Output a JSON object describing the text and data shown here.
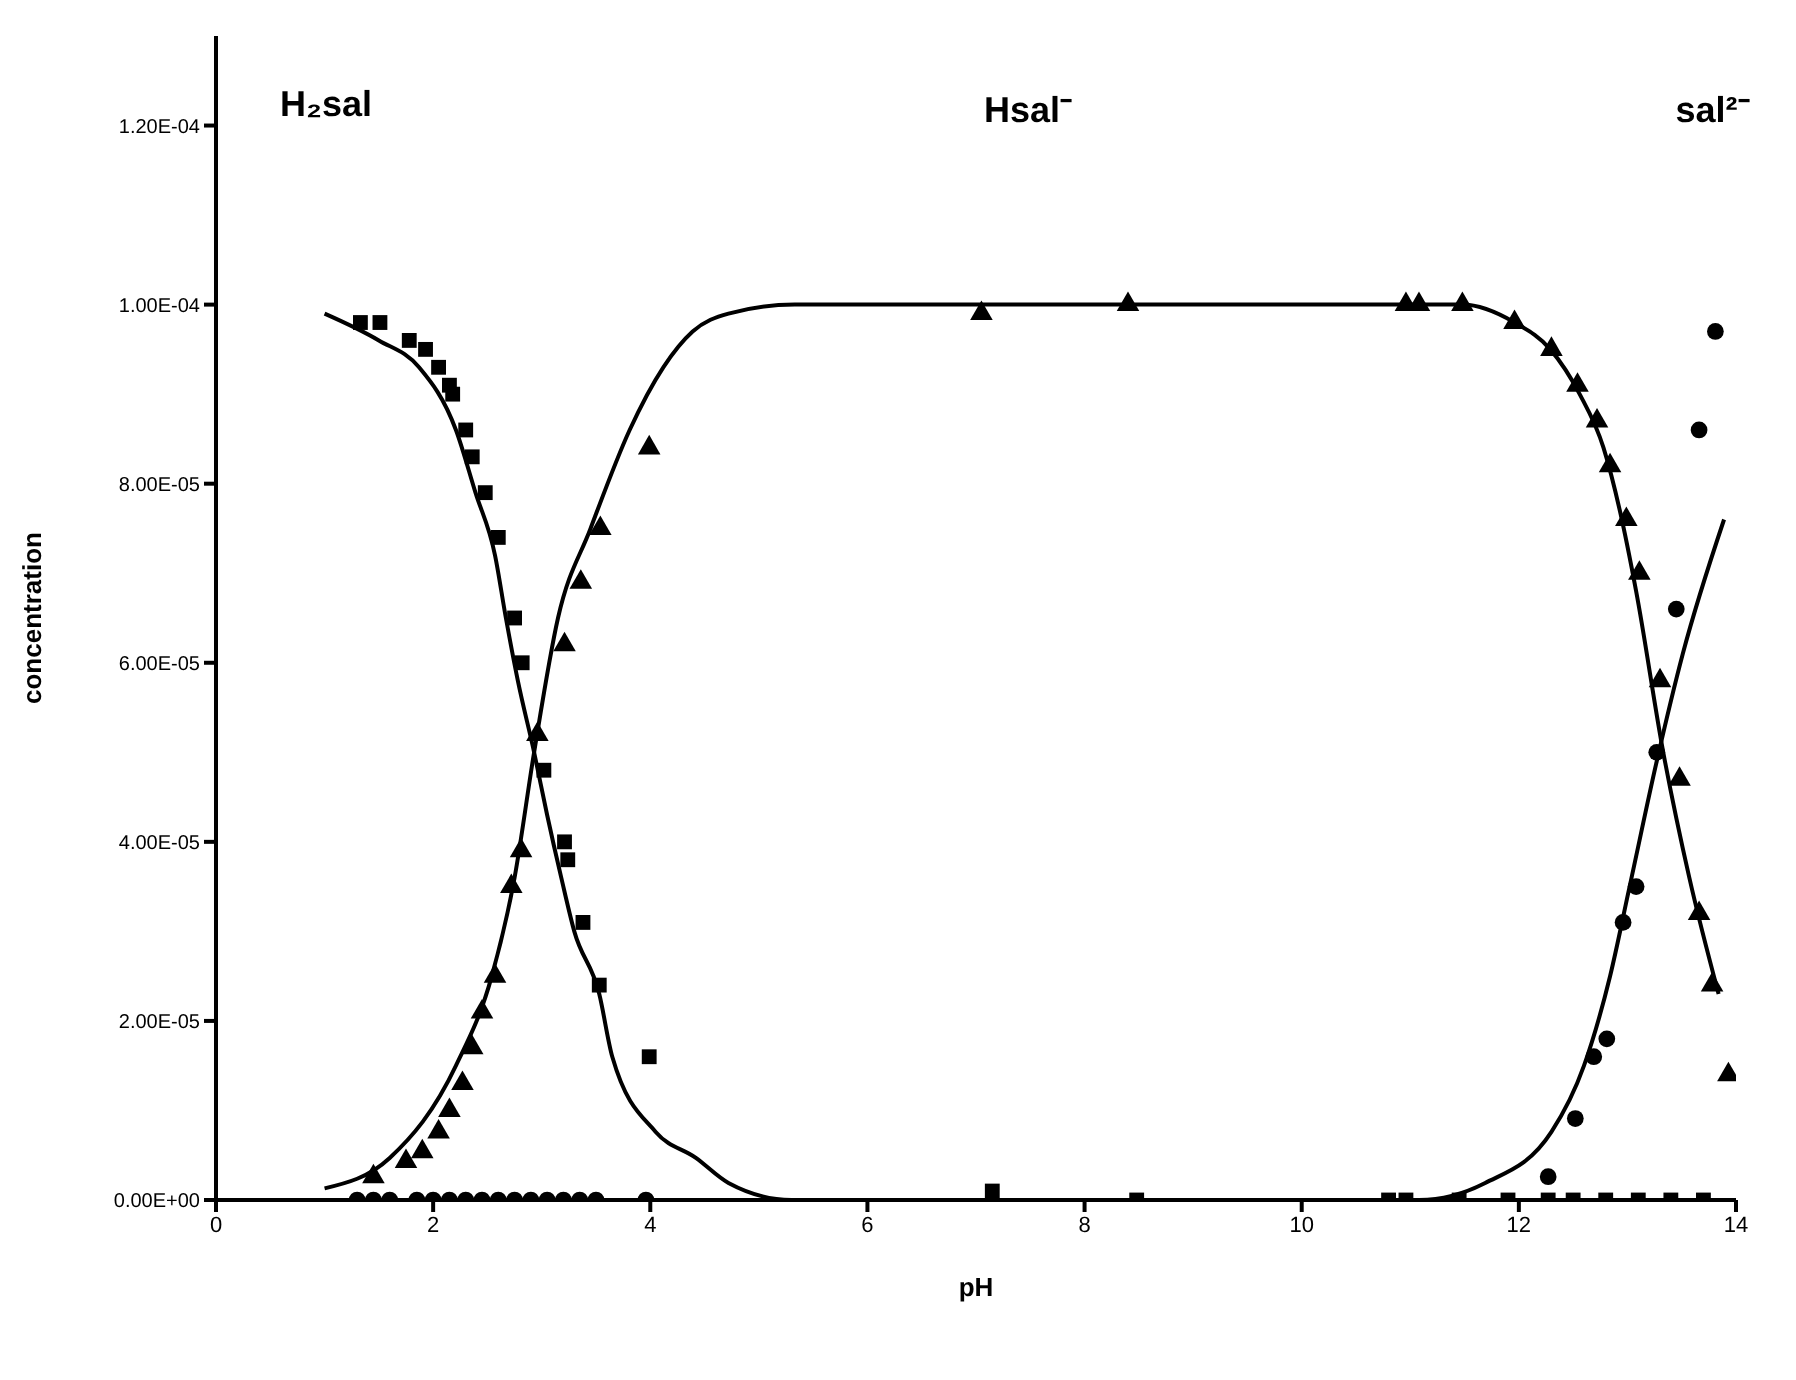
{
  "chart_data": {
    "type": "scatter",
    "xlabel": "pH",
    "ylabel": "concentration",
    "annotations": [
      "H₂sal",
      "Hsal⁻",
      "sal²⁻"
    ],
    "xlim": [
      0,
      14
    ],
    "xticks": [
      0,
      2,
      4,
      6,
      8,
      10,
      12,
      14
    ],
    "ylim": [
      0,
      0.00013
    ],
    "yticks": [
      {
        "value": 0,
        "label": "0.00E+00"
      },
      {
        "value": 2e-05,
        "label": "2.00E-05"
      },
      {
        "value": 4e-05,
        "label": "4.00E-05"
      },
      {
        "value": 6e-05,
        "label": "6.00E-05"
      },
      {
        "value": 8e-05,
        "label": "8.00E-05"
      },
      {
        "value": 0.0001,
        "label": "1.00E-04"
      },
      {
        "value": 0.00012,
        "label": "1.20E-04"
      }
    ],
    "series": [
      {
        "marker": "square",
        "color": "#000000",
        "x": [
          1.33,
          1.51,
          1.78,
          1.93,
          2.05,
          2.15,
          2.18,
          2.3,
          2.36,
          2.48,
          2.6,
          2.75,
          2.82,
          3.02,
          3.21,
          3.24,
          3.38,
          3.53,
          3.99,
          7.15,
          8.48,
          10.8,
          10.96,
          11.45,
          11.9,
          12.27,
          12.5,
          12.8,
          13.1,
          13.4,
          13.7
        ],
        "values": [
          9.8e-05,
          9.8e-05,
          9.6e-05,
          9.5e-05,
          9.3e-05,
          9.1e-05,
          9e-05,
          8.6e-05,
          8.3e-05,
          7.9e-05,
          7.4e-05,
          6.5e-05,
          6e-05,
          4.8e-05,
          4e-05,
          3.8e-05,
          3.1e-05,
          2.4e-05,
          1.6e-05,
          1e-06,
          0,
          0,
          0,
          0,
          0,
          0,
          0,
          0,
          0,
          0,
          0
        ]
      },
      {
        "marker": "triangle",
        "color": "#000000",
        "x": [
          1.45,
          1.75,
          1.9,
          2.05,
          2.15,
          2.27,
          2.36,
          2.45,
          2.57,
          2.72,
          2.81,
          2.96,
          3.21,
          3.36,
          3.54,
          3.99,
          7.05,
          8.4,
          10.96,
          11.08,
          11.48,
          11.96,
          12.3,
          12.54,
          12.72,
          12.84,
          12.99,
          13.11,
          13.3,
          13.48,
          13.66,
          13.78,
          13.93
        ],
        "values": [
          2.6e-06,
          4.3e-06,
          5.4e-06,
          7.6e-06,
          1e-05,
          1.3e-05,
          1.7e-05,
          2.1e-05,
          2.5e-05,
          3.5e-05,
          3.9e-05,
          5.2e-05,
          6.2e-05,
          6.9e-05,
          7.5e-05,
          8.4e-05,
          9.9e-05,
          0.0001,
          0.0001,
          0.0001,
          0.0001,
          9.8e-05,
          9.5e-05,
          9.1e-05,
          8.7e-05,
          8.2e-05,
          7.6e-05,
          7e-05,
          5.8e-05,
          4.7e-05,
          3.2e-05,
          2.4e-05,
          1.4e-05
        ]
      },
      {
        "marker": "circle",
        "color": "#000000",
        "x": [
          1.3,
          1.45,
          1.6,
          1.85,
          2.0,
          2.15,
          2.3,
          2.45,
          2.6,
          2.75,
          2.9,
          3.05,
          3.2,
          3.35,
          3.5,
          3.96,
          12.27,
          12.52,
          12.69,
          12.81,
          12.96,
          13.08,
          13.27,
          13.45,
          13.66,
          13.81
        ],
        "values": [
          0,
          0,
          0,
          0,
          0,
          0,
          0,
          0,
          0,
          0,
          0,
          0,
          0,
          0,
          0,
          0,
          2.6e-06,
          9.1e-06,
          1.6e-05,
          1.8e-05,
          3.1e-05,
          3.5e-05,
          5e-05,
          6.6e-05,
          8.6e-05,
          9.7e-05
        ]
      },
      {
        "type": "line",
        "marker": "none",
        "color": "#000000",
        "x": [
          1.0,
          1.5,
          1.87,
          2.21,
          2.39,
          2.57,
          2.67,
          2.78,
          2.93,
          3.05,
          3.18,
          3.3,
          3.53,
          3.65,
          4.05,
          4.42,
          4.72,
          5.3,
          6,
          10
        ],
        "values": [
          9.9e-05,
          9.6e-05,
          9.3e-05,
          8.6e-05,
          7.9e-05,
          7.2e-05,
          6.5e-05,
          5.8e-05,
          5e-05,
          4.3e-05,
          3.6e-05,
          3e-05,
          2.3e-05,
          1.6e-05,
          7.6e-06,
          4.7e-06,
          1.9e-06,
          0,
          0,
          0
        ]
      },
      {
        "type": "line",
        "marker": "none",
        "color": "#000000",
        "x": [
          1.0,
          1.6,
          2.21,
          2.54,
          2.75,
          2.93,
          3.15,
          3.45,
          3.81,
          4.12,
          4.39,
          4.72,
          5.33,
          8,
          11.48,
          11.96,
          12.29,
          12.56,
          12.78,
          12.93,
          13.08,
          13.33,
          13.57,
          13.84
        ],
        "values": [
          1.3e-06,
          4.7e-06,
          1.5e-05,
          2.5e-05,
          3.6e-05,
          5e-05,
          6.5e-05,
          7.5e-05,
          8.6e-05,
          9.3e-05,
          9.7e-05,
          9.9e-05,
          0.0001,
          0.0001,
          0.0001,
          9.8e-05,
          9.5e-05,
          9e-05,
          8.4e-05,
          7.7e-05,
          6.8e-05,
          5e-05,
          3.6e-05,
          2.3e-05
        ]
      },
      {
        "type": "line",
        "marker": "none",
        "color": "#000000",
        "x": [
          10.0,
          11.08,
          11.69,
          12.3,
          12.6,
          12.84,
          13.02,
          13.27,
          13.51,
          13.89
        ],
        "values": [
          0,
          0,
          1.9e-06,
          7.6e-06,
          1.5e-05,
          2.5e-05,
          3.5e-05,
          4.9e-05,
          6.1e-05,
          7.6e-05
        ]
      }
    ]
  }
}
